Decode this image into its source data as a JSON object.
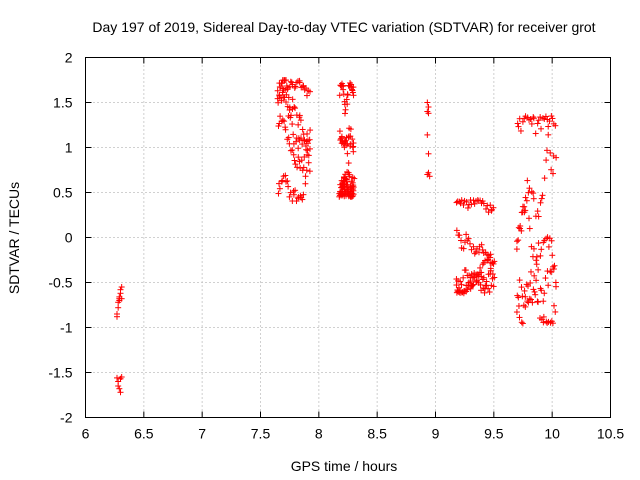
{
  "chart_data": {
    "type": "scatter",
    "title": "Day 197 of 2019, Sidereal Day-to-day VTEC variation (SDTVAR) for receiver grot",
    "xlabel": "GPS time / hours",
    "ylabel": "SDTVAR / TECUs",
    "xlim": [
      6,
      10.5
    ],
    "ylim": [
      -2,
      2
    ],
    "x_ticks": [
      "6",
      "6.5",
      "7",
      "7.5",
      "8",
      "8.5",
      "9",
      "9.5",
      "10",
      "10.5"
    ],
    "y_ticks": [
      "2",
      "1.5",
      "1",
      "0.5",
      "0",
      "-0.5",
      "-1",
      "-1.5",
      "-2"
    ],
    "grid": true,
    "marker": "+",
    "series_color": "#ff0000",
    "clusters": [
      {
        "x_range": [
          6.26,
          6.31
        ],
        "points": [
          [
            6.27,
            -0.88
          ],
          [
            6.27,
            -0.85
          ],
          [
            6.28,
            -0.78
          ],
          [
            6.28,
            -0.72
          ],
          [
            6.29,
            -0.68
          ],
          [
            6.29,
            -0.66
          ],
          [
            6.3,
            -0.62
          ],
          [
            6.3,
            -0.58
          ],
          [
            6.31,
            -0.55
          ],
          [
            6.31,
            -0.68
          ],
          [
            6.29,
            -0.7
          ],
          [
            6.27,
            -1.56
          ],
          [
            6.28,
            -1.6
          ],
          [
            6.28,
            -1.65
          ],
          [
            6.29,
            -1.68
          ],
          [
            6.3,
            -1.72
          ],
          [
            6.3,
            -1.57
          ],
          [
            6.31,
            -1.55
          ]
        ]
      },
      {
        "x_range": [
          7.65,
          7.92
        ],
        "y_range": [
          0.4,
          1.75
        ]
      },
      {
        "x_range": [
          8.18,
          8.3
        ],
        "y_range": [
          0.45,
          1.72
        ]
      },
      {
        "x_range": [
          8.92,
          8.96
        ],
        "points": [
          [
            8.93,
            1.5
          ],
          [
            8.94,
            1.45
          ],
          [
            8.93,
            1.4
          ],
          [
            8.94,
            1.38
          ],
          [
            8.93,
            1.14
          ],
          [
            8.94,
            0.93
          ],
          [
            8.94,
            0.72
          ],
          [
            8.95,
            0.68
          ],
          [
            8.93,
            0.7
          ]
        ]
      },
      {
        "x_range": [
          9.18,
          9.5
        ],
        "y_range": [
          -0.62,
          0.42
        ]
      },
      {
        "x_range": [
          9.7,
          10.03
        ],
        "y_range": [
          -0.98,
          1.35
        ]
      }
    ]
  }
}
